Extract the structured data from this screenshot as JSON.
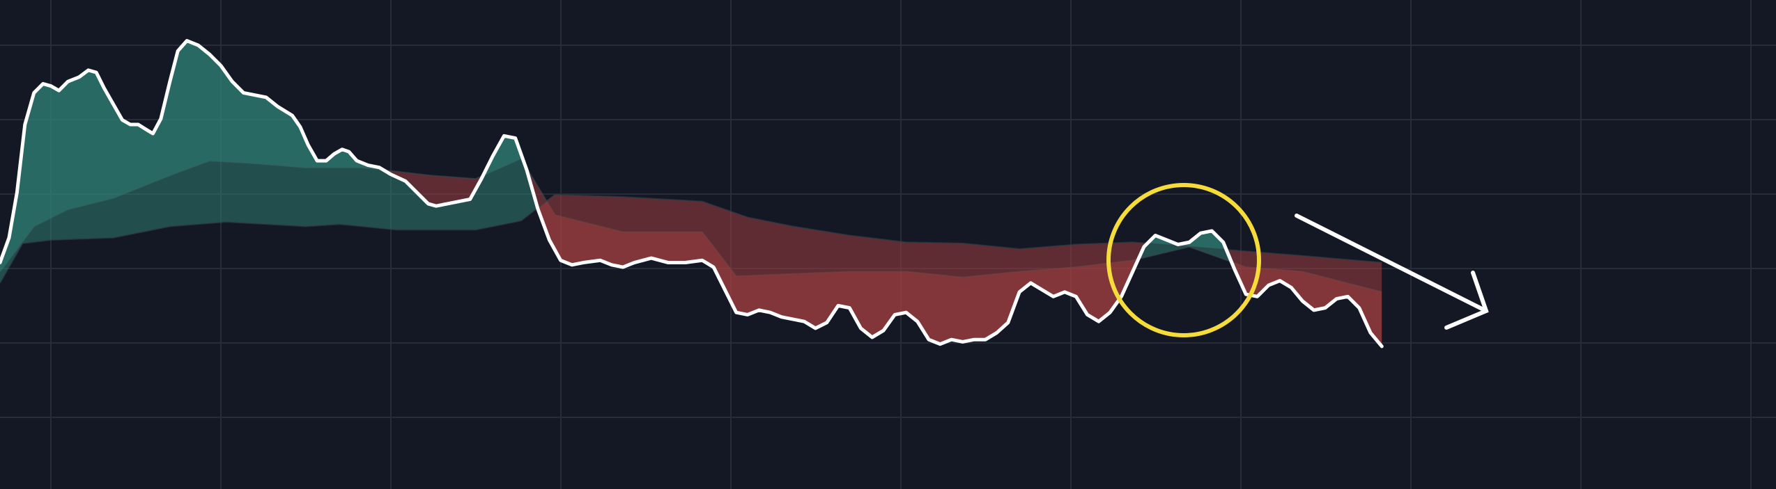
{
  "chart_data": {
    "type": "line",
    "xlim": [
      0,
      1568
    ],
    "ylim": [
      0,
      432
    ],
    "grid": true,
    "up_color": "#2f8478",
    "down_color": "#a8403f",
    "series": [
      {
        "color": "#ffffff",
        "x": [
          0,
          8,
          15,
          22,
          30,
          38,
          45,
          52,
          60,
          70,
          78,
          85,
          92,
          100,
          108,
          115,
          122,
          130,
          135,
          142,
          150,
          157,
          165,
          175,
          185,
          195,
          205,
          215,
          225,
          235,
          245,
          258,
          265,
          272,
          280,
          288,
          295,
          302,
          308,
          315,
          325,
          335,
          345,
          358,
          368,
          378,
          385,
          395,
          405,
          415,
          425,
          435,
          445,
          455,
          465,
          475,
          485,
          495,
          505,
          515,
          530,
          540,
          550,
          560,
          575,
          590,
          605,
          620,
          630,
          640,
          650,
          660,
          670,
          680,
          690,
          700,
          710,
          720,
          730,
          740,
          750,
          760,
          770,
          780,
          790,
          800,
          810,
          820,
          830,
          840,
          850,
          860,
          870,
          880,
          890,
          900,
          910,
          920,
          930,
          940,
          950,
          960,
          970,
          980,
          990,
          1000,
          1010,
          1020,
          1030,
          1040,
          1050,
          1060,
          1070,
          1080,
          1090,
          1100,
          1110,
          1120,
          1130,
          1140,
          1150,
          1160,
          1170,
          1180,
          1190,
          1200,
          1210,
          1220
        ],
        "values": [
          200,
          222,
          262,
          322,
          350,
          358,
          356,
          352,
          360,
          364,
          370,
          368,
          354,
          340,
          326,
          322,
          322,
          317,
          314,
          327,
          360,
          387,
          396,
          392,
          384,
          374,
          360,
          350,
          348,
          346,
          338,
          330,
          320,
          304,
          290,
          290,
          296,
          300,
          298,
          290,
          286,
          284,
          278,
          272,
          262,
          252,
          250,
          252,
          254,
          256,
          274,
          294,
          312,
          310,
          282,
          247,
          220,
          202,
          198,
          200,
          202,
          198,
          196,
          200,
          204,
          200,
          200,
          202,
          196,
          176,
          156,
          154,
          158,
          156,
          152,
          150,
          148,
          142,
          147,
          162,
          160,
          142,
          134,
          140,
          154,
          156,
          148,
          132,
          128,
          132,
          130,
          132,
          132,
          138,
          147,
          174,
          182,
          176,
          170,
          174,
          170,
          154,
          148,
          156,
          170,
          192,
          214,
          224,
          220,
          216,
          218,
          226,
          228,
          218,
          194,
          172,
          170,
          180,
          184,
          178,
          166,
          158,
          160,
          168,
          170,
          160,
          138,
          126
        ]
      },
      {
        "color": "#3a4a4e",
        "x": [
          0,
          30,
          60,
          100,
          150,
          185,
          220,
          270,
          320,
          380,
          420,
          460,
          490,
          550,
          620,
          650,
          700,
          750,
          800,
          850,
          900,
          950,
          1000,
          1050,
          1100,
          1150,
          1220
        ],
        "values": [
          192,
          232,
          247,
          257,
          277,
          290,
          288,
          284,
          284,
          277,
          274,
          292,
          242,
          227,
          227,
          188,
          190,
          192,
          192,
          187,
          192,
          196,
          202,
          214,
          196,
          192,
          174
        ]
      },
      {
        "color": "#33404a",
        "x": [
          0,
          20,
          45,
          100,
          150,
          200,
          270,
          300,
          350,
          420,
          460,
          490,
          550,
          620,
          660,
          700,
          750,
          800,
          850,
          900,
          950,
          1000,
          1050,
          1100,
          1150,
          1220
        ],
        "values": [
          182,
          217,
          220,
          222,
          232,
          236,
          232,
          234,
          229,
          229,
          237,
          260,
          258,
          254,
          240,
          232,
          224,
          218,
          217,
          212,
          216,
          218,
          214,
          210,
          206,
          200
        ]
      }
    ]
  }
}
